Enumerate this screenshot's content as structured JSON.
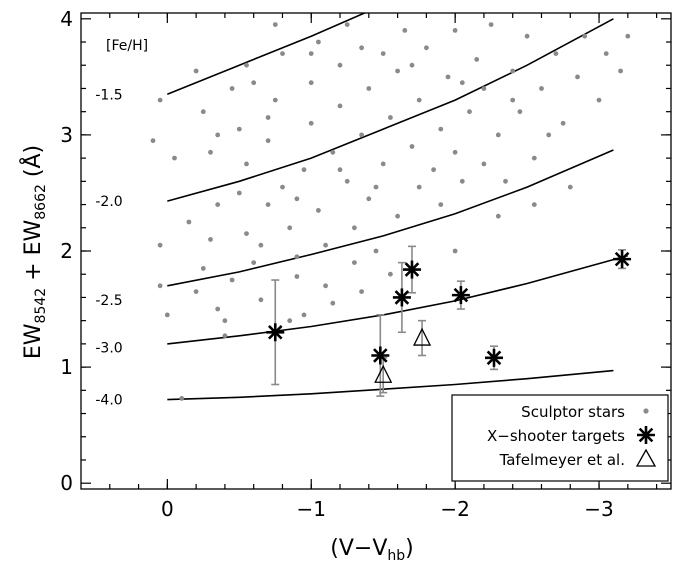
{
  "chart_data": {
    "type": "scatter",
    "title": "",
    "xlabel": {
      "main": "(V−V",
      "sub": "hb",
      "end": ")"
    },
    "ylabel": {
      "a": "EW",
      "a_sub": "8542",
      "mid": " + EW",
      "b_sub": "8662",
      "end": " (Å)"
    },
    "xlim": [
      0.6,
      -3.5
    ],
    "ylim": [
      -0.05,
      4.05
    ],
    "x_ticks": [
      0,
      -1,
      -2,
      -3
    ],
    "x_tick_labels": [
      "0",
      "−1",
      "−2",
      "−3"
    ],
    "y_ticks": [
      0,
      1,
      2,
      3,
      4
    ],
    "y_tick_labels": [
      "0",
      "1",
      "2",
      "3",
      "4"
    ],
    "feh_header": "[Fe/H]",
    "feh_labels": [
      {
        "text": "-1.5",
        "x": 0.5,
        "y": 3.35
      },
      {
        "text": "-2.0",
        "x": 0.5,
        "y": 2.43
      },
      {
        "text": "-2.5",
        "x": 0.5,
        "y": 1.58
      },
      {
        "text": "-3.0",
        "x": 0.5,
        "y": 1.17
      },
      {
        "text": "-4.0",
        "x": 0.5,
        "y": 0.72
      }
    ],
    "calibration_lines": [
      {
        "feh": "-1.5",
        "points": [
          [
            0,
            3.35
          ],
          [
            -0.5,
            3.6
          ],
          [
            -1,
            3.85
          ],
          [
            -1.5,
            4.12
          ]
        ]
      },
      {
        "feh": "-2.0",
        "points": [
          [
            0,
            2.43
          ],
          [
            -0.5,
            2.6
          ],
          [
            -1,
            2.8
          ],
          [
            -1.5,
            3.05
          ],
          [
            -2,
            3.3
          ],
          [
            -2.5,
            3.6
          ],
          [
            -3.1,
            4.0
          ]
        ]
      },
      {
        "feh": "-2.5",
        "points": [
          [
            0,
            1.7
          ],
          [
            -0.5,
            1.82
          ],
          [
            -1,
            1.97
          ],
          [
            -1.5,
            2.13
          ],
          [
            -2,
            2.32
          ],
          [
            -2.5,
            2.55
          ],
          [
            -3.1,
            2.87
          ]
        ]
      },
      {
        "feh": "-3.0",
        "points": [
          [
            0,
            1.2
          ],
          [
            -0.5,
            1.27
          ],
          [
            -1,
            1.35
          ],
          [
            -1.5,
            1.45
          ],
          [
            -2,
            1.57
          ],
          [
            -2.5,
            1.72
          ],
          [
            -3.2,
            1.96
          ]
        ]
      },
      {
        "feh": "-4.0",
        "points": [
          [
            0,
            0.72
          ],
          [
            -0.5,
            0.74
          ],
          [
            -1,
            0.77
          ],
          [
            -1.5,
            0.81
          ],
          [
            -2,
            0.85
          ],
          [
            -2.5,
            0.9
          ],
          [
            -3.1,
            0.97
          ]
        ]
      }
    ],
    "sculptor_stars": [
      [
        0.05,
        3.3
      ],
      [
        0.1,
        2.95
      ],
      [
        -0.05,
        2.8
      ],
      [
        0.05,
        2.05
      ],
      [
        0.05,
        1.7
      ],
      [
        0,
        1.45
      ],
      [
        -0.1,
        0.73
      ],
      [
        -0.2,
        3.55
      ],
      [
        -0.25,
        3.2
      ],
      [
        -0.3,
        2.85
      ],
      [
        -0.35,
        2.4
      ],
      [
        -0.3,
        2.1
      ],
      [
        -0.25,
        1.85
      ],
      [
        -0.2,
        1.65
      ],
      [
        -0.35,
        1.5
      ],
      [
        -0.4,
        1.4
      ],
      [
        -0.4,
        1.27
      ],
      [
        -0.5,
        2.5
      ],
      [
        -0.55,
        2.75
      ],
      [
        -0.5,
        3.05
      ],
      [
        -0.45,
        3.4
      ],
      [
        -0.55,
        3.6
      ],
      [
        -0.55,
        2.15
      ],
      [
        -0.6,
        1.9
      ],
      [
        -0.65,
        1.58
      ],
      [
        -0.7,
        2.4
      ],
      [
        -0.7,
        2.95
      ],
      [
        -0.75,
        3.3
      ],
      [
        -0.8,
        3.7
      ],
      [
        -0.75,
        3.95
      ],
      [
        -0.8,
        2.55
      ],
      [
        -0.85,
        2.2
      ],
      [
        -0.9,
        1.95
      ],
      [
        -0.9,
        1.78
      ],
      [
        -0.95,
        2.7
      ],
      [
        -1.0,
        3.1
      ],
      [
        -1.0,
        3.45
      ],
      [
        -1.05,
        3.8
      ],
      [
        -1.05,
        2.35
      ],
      [
        -1.1,
        2.05
      ],
      [
        -1.1,
        1.7
      ],
      [
        -1.15,
        2.85
      ],
      [
        -1.2,
        3.25
      ],
      [
        -1.2,
        3.6
      ],
      [
        -1.25,
        3.95
      ],
      [
        -1.25,
        2.6
      ],
      [
        -1.3,
        2.2
      ],
      [
        -1.3,
        1.9
      ],
      [
        -1.35,
        3.0
      ],
      [
        -1.4,
        3.4
      ],
      [
        -1.4,
        2.45
      ],
      [
        -1.45,
        2.0
      ],
      [
        -1.5,
        3.7
      ],
      [
        -1.5,
        2.75
      ],
      [
        -1.55,
        3.15
      ],
      [
        -1.6,
        2.3
      ],
      [
        -1.6,
        3.55
      ],
      [
        -1.65,
        3.9
      ],
      [
        -1.7,
        2.9
      ],
      [
        -1.75,
        2.55
      ],
      [
        -1.75,
        3.3
      ],
      [
        -1.8,
        3.75
      ],
      [
        -1.85,
        2.7
      ],
      [
        -1.9,
        3.05
      ],
      [
        -1.9,
        2.4
      ],
      [
        -1.95,
        3.5
      ],
      [
        -2.0,
        3.9
      ],
      [
        -2.0,
        2.85
      ],
      [
        -2.05,
        2.6
      ],
      [
        -2.1,
        3.2
      ],
      [
        -2.15,
        3.65
      ],
      [
        -2.2,
        2.75
      ],
      [
        -2.2,
        3.4
      ],
      [
        -2.25,
        3.95
      ],
      [
        -2.3,
        3.0
      ],
      [
        -2.35,
        2.6
      ],
      [
        -2.4,
        3.55
      ],
      [
        -2.45,
        3.2
      ],
      [
        -2.5,
        3.85
      ],
      [
        -2.55,
        2.8
      ],
      [
        -2.6,
        3.4
      ],
      [
        -2.7,
        3.7
      ],
      [
        -2.75,
        3.1
      ],
      [
        -2.8,
        2.55
      ],
      [
        -2.85,
        3.5
      ],
      [
        -2.9,
        3.85
      ],
      [
        -3.0,
        3.3
      ],
      [
        -3.05,
        3.7
      ],
      [
        -3.15,
        3.55
      ],
      [
        -3.2,
        3.85
      ],
      [
        -1.15,
        1.55
      ],
      [
        -0.95,
        1.45
      ],
      [
        -1.35,
        1.65
      ],
      [
        -0.85,
        1.4
      ],
      [
        -0.65,
        2.05
      ],
      [
        -0.45,
        1.75
      ],
      [
        -1.55,
        1.8
      ],
      [
        -1.45,
        2.55
      ],
      [
        -0.9,
        2.45
      ],
      [
        -1.2,
        2.7
      ],
      [
        -0.7,
        3.15
      ],
      [
        -0.35,
        3.0
      ],
      [
        -0.15,
        2.25
      ],
      [
        -0.6,
        3.45
      ],
      [
        -1.0,
        3.7
      ],
      [
        -1.35,
        3.75
      ],
      [
        -1.7,
        3.6
      ],
      [
        -2.05,
        3.45
      ],
      [
        -2.4,
        3.3
      ],
      [
        -2.65,
        3.0
      ],
      [
        -2.3,
        2.3
      ],
      [
        -2.0,
        2.0
      ],
      [
        -2.55,
        2.4
      ]
    ],
    "series": [
      {
        "name": "Sculptor stars"
      },
      {
        "name": "X−shooter targets",
        "points": [
          {
            "x": -0.75,
            "y": 1.3,
            "err_low": 0.45,
            "err_high": 0.45
          },
          {
            "x": -1.48,
            "y": 1.1,
            "err_low": 0.35,
            "err_high": 0.35
          },
          {
            "x": -1.63,
            "y": 1.6,
            "err_low": 0.3,
            "err_high": 0.3
          },
          {
            "x": -1.7,
            "y": 1.84,
            "err_low": 0.2,
            "err_high": 0.2
          },
          {
            "x": -2.04,
            "y": 1.62,
            "err_low": 0.12,
            "err_high": 0.12
          },
          {
            "x": -2.27,
            "y": 1.08,
            "err_low": 0.1,
            "err_high": 0.1
          },
          {
            "x": -3.16,
            "y": 1.93,
            "err_low": 0.08,
            "err_high": 0.08
          }
        ]
      },
      {
        "name": "Tafelmeyer et al.",
        "points": [
          {
            "x": -1.5,
            "y": 0.93,
            "err_low": 0.15,
            "err_high": 0.15
          },
          {
            "x": -1.77,
            "y": 1.25,
            "err_low": 0.15,
            "err_high": 0.15
          }
        ]
      }
    ],
    "legend_position": "bottom-right",
    "colors": {
      "stars": "#8a8a8a",
      "errorbar": "#8a8a8a",
      "ink": "#000000"
    }
  }
}
